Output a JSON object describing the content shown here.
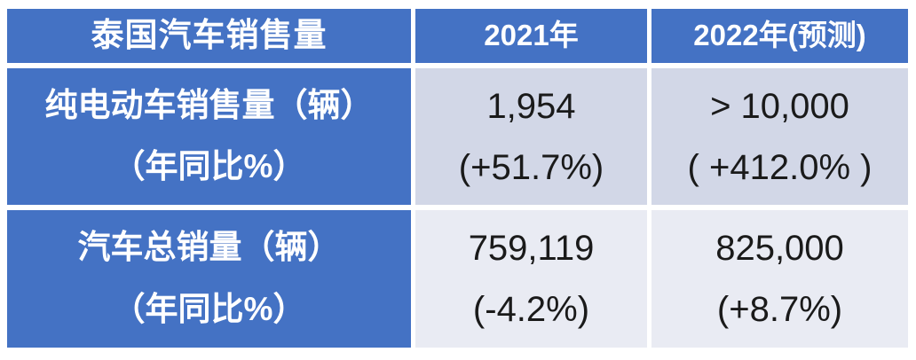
{
  "table": {
    "header": {
      "title": "泰国汽车销售量",
      "col_2021": "2021年",
      "col_2022": "2022年(预测)"
    },
    "rows": [
      {
        "label_line1": "纯电动车销售量（辆）",
        "label_line2": "（年同比%）",
        "y2021_value": "1,954",
        "y2021_yoy": "(+51.7%)",
        "y2022_value": "> 10,000",
        "y2022_yoy": "( +412.0% )"
      },
      {
        "label_line1": "汽车总销量（辆）",
        "label_line2": "（年同比%）",
        "y2021_value": "759,119",
        "y2021_yoy": "(-4.2%)",
        "y2022_value": "825,000",
        "y2022_yoy": "(+8.7%)"
      }
    ]
  },
  "colors": {
    "header_blue": "#4472C4",
    "band_dark": "#D2D7E7",
    "band_light": "#E9EBF3",
    "gridline": "#FFFFFF",
    "text_light": "#FFFFFF",
    "text_dark": "#1A1A1A"
  },
  "chart_data": {
    "type": "table",
    "title": "泰国汽车销售量",
    "columns": [
      "泰国汽车销售量",
      "2021年",
      "2022年(预测)"
    ],
    "rows": [
      [
        "纯电动车销售量（辆）（年同比%）",
        "1,954 (+51.7%)",
        "> 10,000 ( +412.0% )"
      ],
      [
        "汽车总销量（辆）（年同比%）",
        "759,119 (-4.2%)",
        "825,000 (+8.7%)"
      ]
    ],
    "values": {
      "bev_sales_2021": 1954,
      "bev_sales_2021_yoy_pct": 51.7,
      "bev_sales_2022_forecast_min": 10000,
      "bev_sales_2022_yoy_pct": 412.0,
      "total_sales_2021": 759119,
      "total_sales_2021_yoy_pct": -4.2,
      "total_sales_2022_forecast": 825000,
      "total_sales_2022_yoy_pct": 8.7
    }
  }
}
